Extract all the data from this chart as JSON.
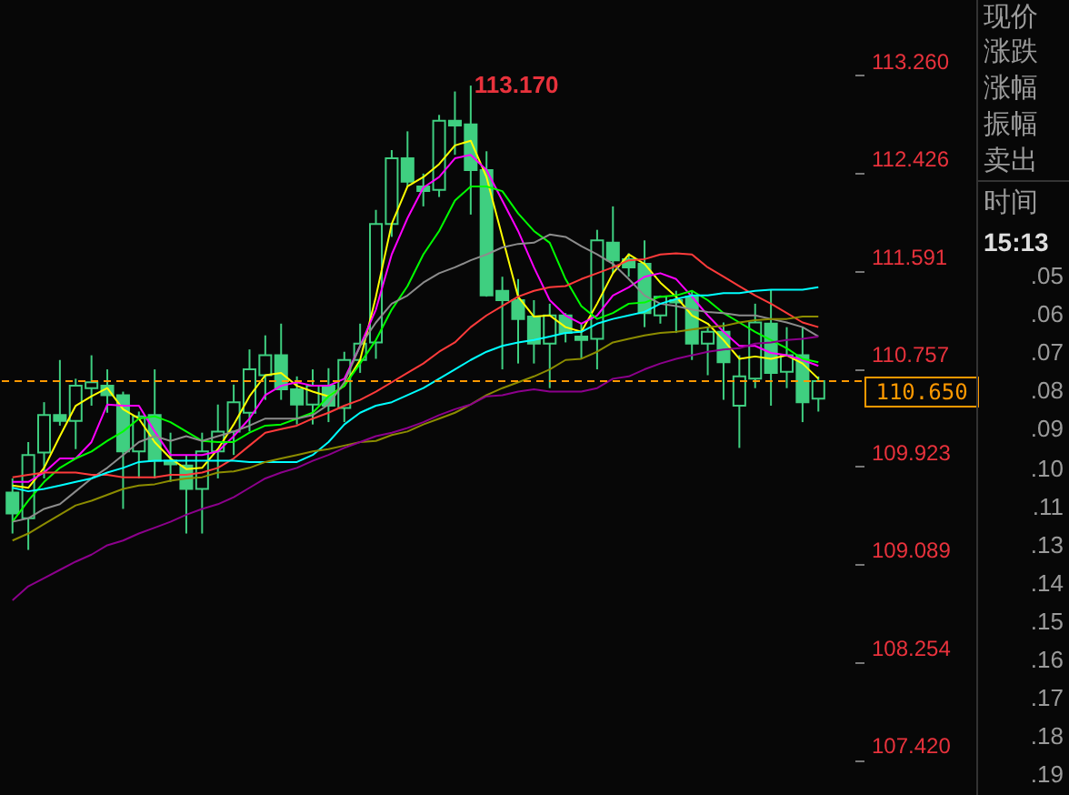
{
  "chart_data": {
    "type": "candlestick",
    "categories": [
      null,
      null,
      null,
      null,
      null,
      null,
      null,
      null,
      null,
      null,
      null,
      null,
      null,
      null,
      null,
      null,
      null,
      null,
      null,
      null,
      null,
      null,
      null,
      null,
      null,
      null,
      null,
      null,
      null,
      null,
      null,
      null,
      null,
      null,
      null,
      null,
      null,
      null,
      null,
      null,
      null,
      null,
      null,
      null,
      null,
      null,
      null,
      null,
      null,
      null,
      null,
      null
    ],
    "color": "#3fcf80",
    "ohlc": [
      [
        109.7,
        109.82,
        109.35,
        109.52
      ],
      [
        109.48,
        110.13,
        109.21,
        110.02
      ],
      [
        110.04,
        110.47,
        109.82,
        110.36
      ],
      [
        110.36,
        110.83,
        110.27,
        110.31
      ],
      [
        110.31,
        110.67,
        110.07,
        110.61
      ],
      [
        110.59,
        110.87,
        110.44,
        110.64
      ],
      [
        110.61,
        110.75,
        110.38,
        110.53
      ],
      [
        110.53,
        110.56,
        109.56,
        110.05
      ],
      [
        110.05,
        110.39,
        109.82,
        110.35
      ],
      [
        110.36,
        110.75,
        109.82,
        109.97
      ],
      [
        109.97,
        110.21,
        109.79,
        109.94
      ],
      [
        109.93,
        110.02,
        109.35,
        109.73
      ],
      [
        109.73,
        110.21,
        109.35,
        110.05
      ],
      [
        110.05,
        110.45,
        109.82,
        110.22
      ],
      [
        110.22,
        110.62,
        110.02,
        110.47
      ],
      [
        110.38,
        110.92,
        110.22,
        110.75
      ],
      [
        110.7,
        111.04,
        110.49,
        110.87
      ],
      [
        110.87,
        111.14,
        110.49,
        110.58
      ],
      [
        110.58,
        110.69,
        110.28,
        110.45
      ],
      [
        110.45,
        110.75,
        110.28,
        110.61
      ],
      [
        110.61,
        110.76,
        110.3,
        110.44
      ],
      [
        110.42,
        110.9,
        110.3,
        110.83
      ],
      [
        110.83,
        111.14,
        110.72,
        110.97
      ],
      [
        110.98,
        112.11,
        110.84,
        111.99
      ],
      [
        111.99,
        112.62,
        111.88,
        112.55
      ],
      [
        112.55,
        112.78,
        112.31,
        112.35
      ],
      [
        112.31,
        112.42,
        112.14,
        112.27
      ],
      [
        112.28,
        112.92,
        112.22,
        112.87
      ],
      [
        112.87,
        113.12,
        112.58,
        112.83
      ],
      [
        112.84,
        113.17,
        112.07,
        112.45
      ],
      [
        112.45,
        112.61,
        111.37,
        111.38
      ],
      [
        111.42,
        111.54,
        110.75,
        111.34
      ],
      [
        111.34,
        111.52,
        110.8,
        111.18
      ],
      [
        111.2,
        111.34,
        110.8,
        110.97
      ],
      [
        110.97,
        111.31,
        110.59,
        111.21
      ],
      [
        111.21,
        111.23,
        110.98,
        111.06
      ],
      [
        111.03,
        111.14,
        110.84,
        111.0
      ],
      [
        111.01,
        111.94,
        110.75,
        111.85
      ],
      [
        111.83,
        112.14,
        111.57,
        111.68
      ],
      [
        111.69,
        111.74,
        111.54,
        111.62
      ],
      [
        111.65,
        111.85,
        111.11,
        111.23
      ],
      [
        111.21,
        111.38,
        111.14,
        111.37
      ],
      [
        111.34,
        111.42,
        111.06,
        111.32
      ],
      [
        111.37,
        111.42,
        110.83,
        110.97
      ],
      [
        110.97,
        111.11,
        110.7,
        111.07
      ],
      [
        111.07,
        111.15,
        110.49,
        110.81
      ],
      [
        110.44,
        110.87,
        110.08,
        110.69
      ],
      [
        110.67,
        111.31,
        110.59,
        111.15
      ],
      [
        111.14,
        111.43,
        110.44,
        110.72
      ],
      [
        110.73,
        111.11,
        110.59,
        110.87
      ],
      [
        110.87,
        111.11,
        110.3,
        110.47
      ],
      [
        110.5,
        110.69,
        110.39,
        110.65
      ]
    ],
    "series": [
      {
        "type": "line",
        "color": "#ffff00",
        "values": [
          109.76,
          109.74,
          109.91,
          110.18,
          110.44,
          110.52,
          110.59,
          110.41,
          110.33,
          110.13,
          109.99,
          109.9,
          109.91,
          110.07,
          110.28,
          110.52,
          110.7,
          110.72,
          110.61,
          110.56,
          110.52,
          110.61,
          110.83,
          111.37,
          111.99,
          112.31,
          112.39,
          112.5,
          112.66,
          112.7,
          112.39,
          111.88,
          111.37,
          111.2,
          111.21,
          111.11,
          111.07,
          111.31,
          111.57,
          111.73,
          111.65,
          111.49,
          111.37,
          111.21,
          111.14,
          111.0,
          110.84,
          110.86,
          110.84,
          110.87,
          110.8,
          110.67
        ]
      },
      {
        "type": "line",
        "color": "#ff00ff",
        "values": [
          109.79,
          109.79,
          109.87,
          109.99,
          109.99,
          110.13,
          110.45,
          110.44,
          110.44,
          110.22,
          110.02,
          110.02,
          110.02,
          110.05,
          110.18,
          110.33,
          110.53,
          110.61,
          110.64,
          110.61,
          110.61,
          110.67,
          110.95,
          111.26,
          111.73,
          112.04,
          112.3,
          112.39,
          112.55,
          112.58,
          112.45,
          112.19,
          111.93,
          111.62,
          111.34,
          111.21,
          111.14,
          111.21,
          111.38,
          111.45,
          111.54,
          111.57,
          111.52,
          111.37,
          111.21,
          111.07,
          110.95,
          110.95,
          110.89,
          110.87,
          110.83,
          110.78
        ]
      },
      {
        "type": "line",
        "color": "#00ff00",
        "values": [
          109.45,
          109.63,
          109.79,
          109.91,
          109.99,
          110.05,
          110.14,
          110.22,
          110.33,
          110.35,
          110.3,
          110.22,
          110.14,
          110.13,
          110.13,
          110.21,
          110.27,
          110.28,
          110.33,
          110.38,
          110.52,
          110.61,
          110.8,
          111.0,
          111.26,
          111.46,
          111.73,
          111.93,
          112.19,
          112.31,
          112.31,
          112.27,
          112.08,
          111.93,
          111.83,
          111.52,
          111.29,
          111.18,
          111.23,
          111.31,
          111.32,
          111.37,
          111.38,
          111.42,
          111.34,
          111.23,
          111.15,
          111.07,
          111.0,
          110.93,
          110.84,
          110.81
        ]
      },
      {
        "type": "line",
        "color": "#8c8c8c",
        "values": [
          109.45,
          109.48,
          109.56,
          109.6,
          109.71,
          109.82,
          109.91,
          110.02,
          110.13,
          110.18,
          110.14,
          110.18,
          110.14,
          110.18,
          110.22,
          110.27,
          110.33,
          110.33,
          110.33,
          110.36,
          110.45,
          110.64,
          110.95,
          111.15,
          111.31,
          111.38,
          111.49,
          111.57,
          111.62,
          111.68,
          111.73,
          111.79,
          111.82,
          111.83,
          111.9,
          111.88,
          111.8,
          111.73,
          111.65,
          111.52,
          111.38,
          111.31,
          111.29,
          111.26,
          111.24,
          111.23,
          111.21,
          111.21,
          111.18,
          111.15,
          111.11,
          111.03
        ]
      },
      {
        "type": "line",
        "color": "#ff3b3b",
        "values": [
          109.83,
          109.85,
          109.87,
          109.87,
          109.87,
          109.85,
          109.85,
          109.83,
          109.83,
          109.83,
          109.85,
          109.85,
          109.87,
          109.91,
          109.99,
          110.1,
          110.21,
          110.24,
          110.27,
          110.33,
          110.38,
          110.44,
          110.49,
          110.56,
          110.64,
          110.72,
          110.8,
          110.9,
          110.98,
          111.11,
          111.21,
          111.29,
          111.37,
          111.42,
          111.45,
          111.46,
          111.52,
          111.57,
          111.62,
          111.68,
          111.69,
          111.73,
          111.74,
          111.73,
          111.62,
          111.54,
          111.46,
          111.38,
          111.31,
          111.23,
          111.15,
          111.11
        ]
      },
      {
        "type": "line",
        "color": "#00ffff",
        "values": [
          109.74,
          109.71,
          109.73,
          109.76,
          109.79,
          109.82,
          109.87,
          109.91,
          109.96,
          109.97,
          109.97,
          109.97,
          109.97,
          109.97,
          109.97,
          109.96,
          109.96,
          109.96,
          109.96,
          110.02,
          110.13,
          110.28,
          110.38,
          110.44,
          110.47,
          110.53,
          110.59,
          110.67,
          110.75,
          110.83,
          110.9,
          110.95,
          110.98,
          111.0,
          111.03,
          111.06,
          111.07,
          111.14,
          111.18,
          111.21,
          111.24,
          111.31,
          111.35,
          111.38,
          111.38,
          111.4,
          111.4,
          111.42,
          111.43,
          111.43,
          111.43,
          111.45
        ]
      },
      {
        "type": "line",
        "color": "#8c8c00",
        "values": [
          109.29,
          109.35,
          109.43,
          109.51,
          109.59,
          109.63,
          109.68,
          109.73,
          109.76,
          109.77,
          109.8,
          109.82,
          109.83,
          109.87,
          109.88,
          109.91,
          109.96,
          109.99,
          110.02,
          110.05,
          110.07,
          110.1,
          110.13,
          110.14,
          110.19,
          110.22,
          110.28,
          110.33,
          110.38,
          110.45,
          110.53,
          110.59,
          110.64,
          110.69,
          110.75,
          110.83,
          110.84,
          110.9,
          110.98,
          111.01,
          111.04,
          111.06,
          111.07,
          111.09,
          111.11,
          111.12,
          111.15,
          111.17,
          111.18,
          111.18,
          111.2,
          111.2
        ]
      },
      {
        "type": "line",
        "color": "#8c008c",
        "values": [
          108.78,
          108.9,
          108.97,
          109.04,
          109.11,
          109.17,
          109.25,
          109.29,
          109.35,
          109.4,
          109.45,
          109.51,
          109.56,
          109.6,
          109.66,
          109.74,
          109.82,
          109.87,
          109.91,
          109.97,
          110.02,
          110.08,
          110.13,
          110.18,
          110.21,
          110.25,
          110.3,
          110.36,
          110.41,
          110.45,
          110.52,
          110.53,
          110.56,
          110.58,
          110.56,
          110.56,
          110.56,
          110.59,
          110.67,
          110.69,
          110.75,
          110.8,
          110.84,
          110.87,
          110.9,
          110.92,
          110.93,
          110.97,
          110.98,
          111.0,
          111.01,
          111.03
        ]
      }
    ],
    "ylim": [
      107.12,
      113.9
    ],
    "yticks": [
      {
        "value": 107.42,
        "label": "107.420"
      },
      {
        "value": 108.254,
        "label": "108.254"
      },
      {
        "value": 109.089,
        "label": "109.089"
      },
      {
        "value": 109.923,
        "label": "109.923"
      },
      {
        "value": 110.757,
        "label": "110.757"
      },
      {
        "value": 111.591,
        "label": "111.591"
      },
      {
        "value": 112.426,
        "label": "112.426"
      },
      {
        "value": 113.26,
        "label": "113.260"
      }
    ],
    "ref_lines": [
      {
        "axis": "y",
        "value": 110.65,
        "label": "110.650",
        "color": "#ff9900",
        "line_style": "dashed"
      }
    ],
    "annotations": [
      "113.170",
      "现价",
      "涨跌",
      "涨幅",
      "振幅",
      "卖出",
      "时间",
      "15:13",
      ".05",
      ".06",
      ".07",
      ".08",
      ".09",
      ".10",
      ".11",
      ".13",
      ".14",
      ".15",
      ".16",
      ".17",
      ".18",
      ".19"
    ]
  }
}
